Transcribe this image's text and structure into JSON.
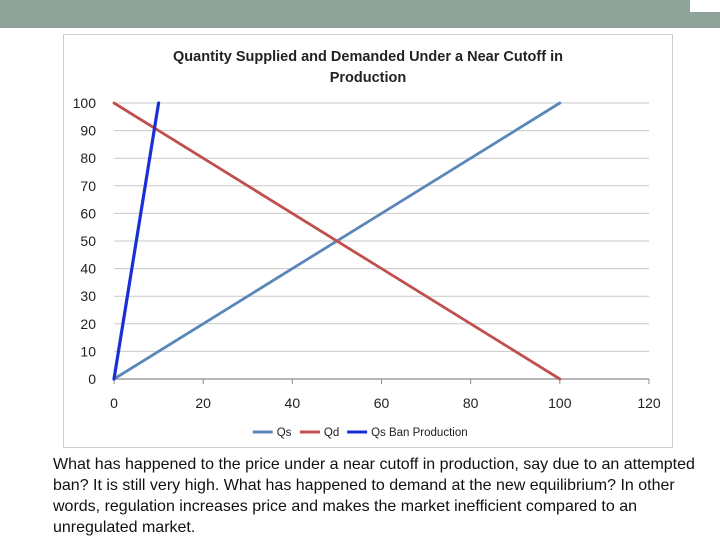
{
  "slide": {
    "caption": "What has happened to the price under a near cutoff in production, say due to an attempted ban? It is still very high. What has happened to demand at the new equilibrium? In other words, regulation increases price and makes the market inefficient compared to an unregulated market.",
    "header_color": "#8fa39b"
  },
  "chart_data": {
    "type": "line",
    "title_lines": [
      "Quantity Supplied and Demanded Under a Near Cutoff in",
      "Production"
    ],
    "xlabel": "",
    "ylabel": "",
    "xlim": [
      0,
      120
    ],
    "ylim": [
      0,
      100
    ],
    "x_ticks": [
      0,
      20,
      40,
      60,
      80,
      100,
      120
    ],
    "y_ticks": [
      0,
      10,
      20,
      30,
      40,
      50,
      60,
      70,
      80,
      90,
      100
    ],
    "grid": "horizontal",
    "legend_position": "bottom",
    "series": [
      {
        "name": "Qs",
        "color": "#5b87b8",
        "x": [
          0,
          100
        ],
        "y": [
          0,
          100
        ]
      },
      {
        "name": "Qd",
        "color": "#c0504d",
        "x": [
          0,
          100
        ],
        "y": [
          100,
          0
        ]
      },
      {
        "name": "Qs Ban Production",
        "color": "#1a2fd6",
        "x": [
          0,
          10
        ],
        "y": [
          0,
          100
        ]
      }
    ]
  }
}
